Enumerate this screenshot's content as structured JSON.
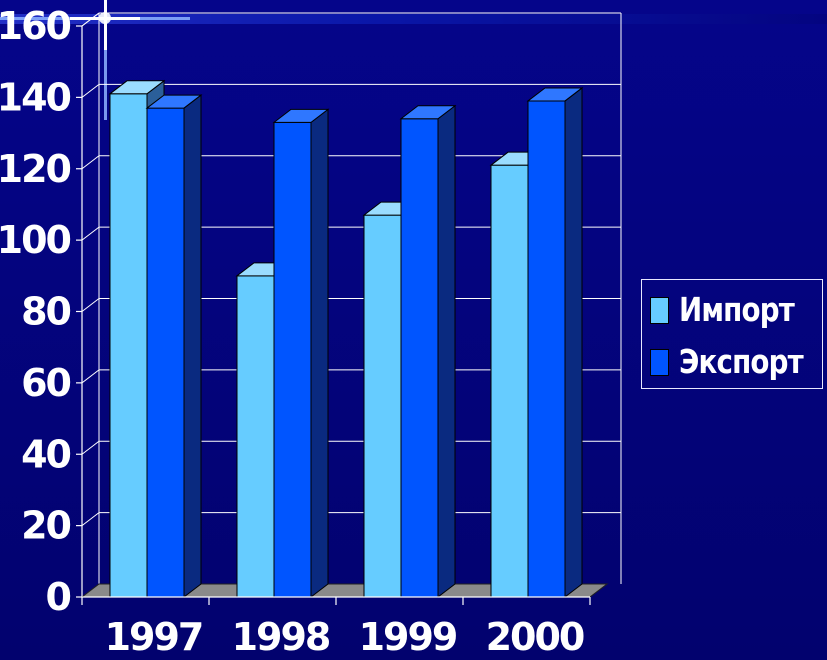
{
  "chart_data": {
    "type": "bar",
    "categories": [
      "1997",
      "1998",
      "1999",
      "2000"
    ],
    "series": [
      {
        "name": "Импорт",
        "values": [
          141,
          90,
          107,
          121
        ]
      },
      {
        "name": "Экспорт",
        "values": [
          137,
          133,
          134,
          139
        ]
      }
    ],
    "ylim": [
      0,
      160
    ],
    "yticks": [
      "0",
      "20",
      "40",
      "60",
      "80",
      "100",
      "120",
      "140",
      "160"
    ],
    "grid": true,
    "legend_position": "right",
    "three_d": true
  },
  "colors": {
    "background": "#03037a",
    "series_import_front": "#66ccff",
    "series_export_front": "#0055ff",
    "floor": "#8a8a8a",
    "grid": "#ffffff",
    "text": "#ffffff"
  }
}
